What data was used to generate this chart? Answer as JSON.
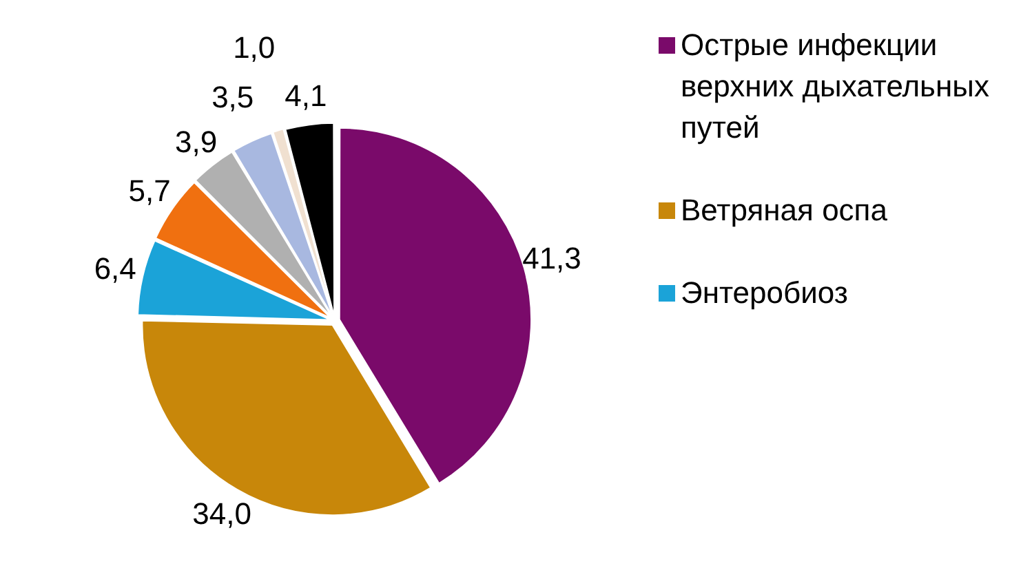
{
  "chart_data": {
    "type": "pie",
    "categories": [
      "Острые инфекции верхних дыхательных путей",
      "Ветряная оспа",
      "Энтеробиоз",
      null,
      null,
      null,
      null,
      null
    ],
    "values": [
      41.3,
      34.0,
      6.4,
      5.7,
      3.9,
      3.5,
      1.0,
      4.1
    ],
    "value_labels": [
      "41,3",
      "34,0",
      "6,4",
      "5,7",
      "3,9",
      "3,5",
      "1,0",
      "4,1"
    ],
    "colors": [
      "#7a0a6a",
      "#c8870a",
      "#1ba3d8",
      "#f07010",
      "#b0b0b0",
      "#a8b8e0",
      "#f0e0d0",
      "#000000"
    ],
    "legend": "right"
  }
}
